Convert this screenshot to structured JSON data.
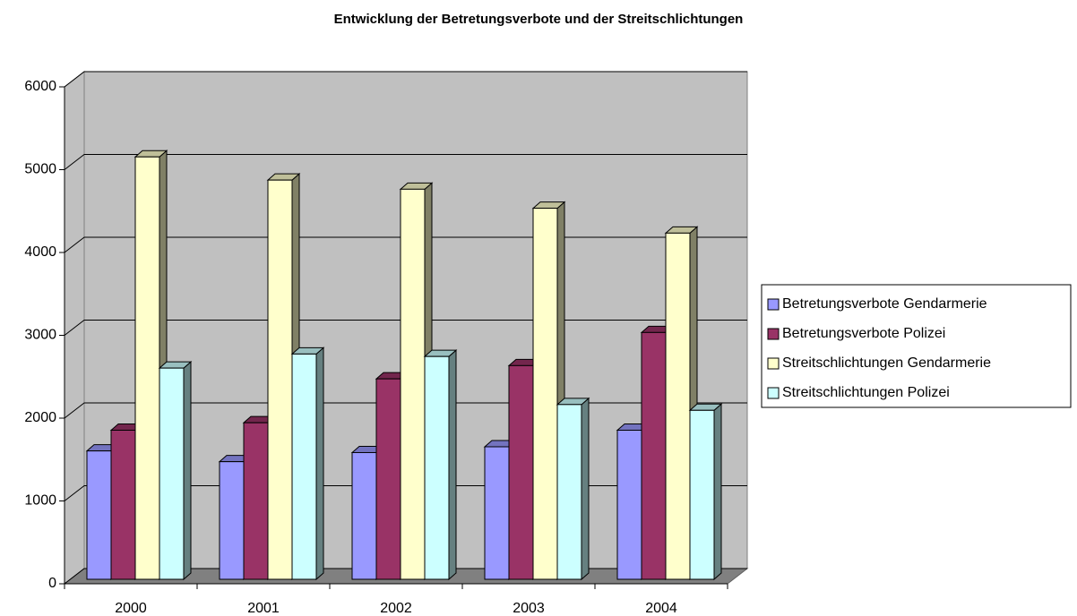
{
  "chart_data": {
    "type": "bar3d",
    "title": "Entwicklung der Betretungsverbote und der Streitschlichtungen",
    "categories": [
      "2000",
      "2001",
      "2002",
      "2003",
      "2004"
    ],
    "series": [
      {
        "name": "Betretungsverbote Gendarmerie",
        "color": "#9999ff",
        "values": [
          1550,
          1420,
          1530,
          1600,
          1800
        ]
      },
      {
        "name": "Betretungsverbote Polizei",
        "color": "#993366",
        "values": [
          1800,
          1890,
          2420,
          2580,
          2980
        ]
      },
      {
        "name": "Streitschlichtungen Gendarmerie",
        "color": "#ffffcc",
        "values": [
          5100,
          4820,
          4710,
          4480,
          4180
        ]
      },
      {
        "name": "Streitschlichtungen Polizei",
        "color": "#ccffff",
        "values": [
          2550,
          2720,
          2690,
          2110,
          2040
        ]
      }
    ],
    "ylim": [
      0,
      6000
    ],
    "yticks": [
      0,
      1000,
      2000,
      3000,
      4000,
      5000,
      6000
    ],
    "grid": true,
    "legend": "right"
  }
}
